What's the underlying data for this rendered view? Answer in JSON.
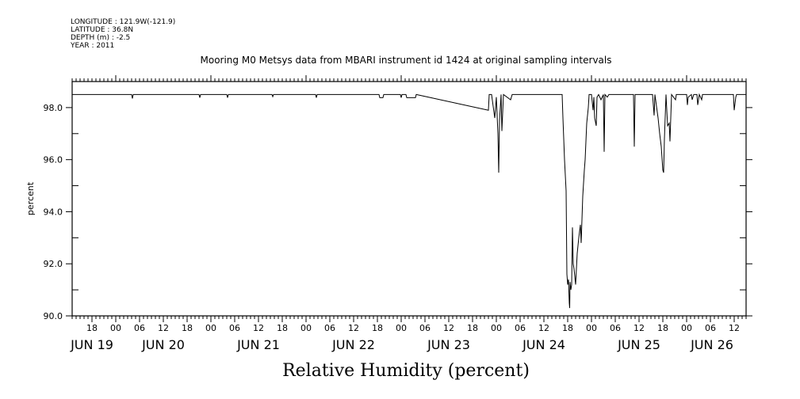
{
  "header": {
    "longitude": "LONGITUDE : 121.9W(-121.9)",
    "latitude": "LATITUDE : 36.8N",
    "depth": "DEPTH (m) : -2.5",
    "year": "YEAR : 2011"
  },
  "chart_data": {
    "type": "line",
    "title": "Mooring M0 Metsys data from MBARI instrument id 1424 at original sampling intervals",
    "xlabel": "Relative Humidity (percent)",
    "ylabel": "percent",
    "x_units": "hours since JUN 19 00:00",
    "xlim": [
      13,
      183
    ],
    "ylim": [
      90,
      99
    ],
    "yticks": [
      90,
      92,
      94,
      96,
      98
    ],
    "ytick_labels": [
      "90.0",
      "92.0",
      "94.0",
      "96.0",
      "98.0"
    ],
    "xtick_hours": [
      18,
      24,
      30,
      36,
      42,
      48,
      54,
      60,
      66,
      72,
      78,
      84,
      90,
      96,
      102,
      108,
      114,
      120,
      126,
      132,
      138,
      144,
      150,
      156,
      162,
      168,
      174,
      180
    ],
    "xtick_labels": [
      "18",
      "00",
      "06",
      "12",
      "18",
      "00",
      "06",
      "12",
      "18",
      "00",
      "06",
      "12",
      "18",
      "00",
      "06",
      "12",
      "18",
      "00",
      "06",
      "12",
      "18",
      "00",
      "06",
      "12",
      "18",
      "00",
      "06",
      "12"
    ],
    "date_labels": [
      {
        "label": "JUN 19",
        "hour": 18
      },
      {
        "label": "JUN 20",
        "hour": 36
      },
      {
        "label": "JUN 21",
        "hour": 60
      },
      {
        "label": "JUN 22",
        "hour": 84
      },
      {
        "label": "JUN 23",
        "hour": 108
      },
      {
        "label": "JUN 24",
        "hour": 132
      },
      {
        "label": "JUN 25",
        "hour": 156
      },
      {
        "label": "JUN 26",
        "hour": 174.4
      }
    ],
    "grid": false,
    "series": [
      {
        "name": "Relative Humidity",
        "x": [
          13,
          28,
          28.2,
          28.4,
          45,
          45.2,
          45.4,
          52,
          52.2,
          52.4,
          63.4,
          63.6,
          63.8,
          74.4,
          74.6,
          74.8,
          90.4,
          90.6,
          91.4,
          91.6,
          91.8,
          95.8,
          96,
          96.2,
          97.2,
          97.4,
          99.6,
          99.8,
          118,
          118.2,
          118.8,
          119.6,
          120,
          120.4,
          120.6,
          120.8,
          121.2,
          121.4,
          121.8,
          123.6,
          124,
          136.6,
          136.8,
          137.2,
          137.6,
          137.8,
          138,
          138.2,
          138.4,
          138.5,
          138.6,
          138.8,
          139,
          139.2,
          139.4,
          139.6,
          140,
          140.4,
          140.8,
          141.2,
          141.4,
          141.6,
          141.8,
          142.2,
          142.4,
          142.8,
          143.2,
          143.4,
          144,
          144.4,
          144.6,
          144.8,
          145.2,
          145.4,
          145.8,
          146.4,
          147,
          147.2,
          147.4,
          148,
          148.4,
          154.6,
          154.8,
          155,
          159.4,
          159.8,
          160,
          160.8,
          161.2,
          161.6,
          162,
          162.2,
          162.4,
          162.8,
          163.2,
          163.6,
          163.8,
          164.2,
          165.2,
          165.4,
          168,
          168.2,
          168.4,
          169.2,
          169.4,
          169.8,
          170.6,
          170.8,
          171.2,
          171.8,
          172,
          172.4,
          179.8,
          180,
          180.4,
          180.6,
          183
        ],
        "y": [
          98.5,
          98.5,
          98.35,
          98.5,
          98.5,
          98.38,
          98.5,
          98.5,
          98.38,
          98.5,
          98.5,
          98.42,
          98.5,
          98.5,
          98.38,
          98.5,
          98.5,
          98.38,
          98.38,
          98.5,
          98.5,
          98.5,
          98.38,
          98.5,
          98.5,
          98.38,
          98.38,
          98.5,
          97.9,
          98.5,
          98.5,
          97.6,
          98.4,
          97.0,
          95.5,
          97.5,
          98.5,
          97.1,
          98.5,
          98.3,
          98.5,
          98.5,
          97.6,
          96.0,
          94.8,
          91.6,
          91.2,
          91.4,
          90.5,
          90.3,
          91.3,
          91.0,
          91.2,
          93.4,
          92.0,
          91.8,
          91.2,
          92.4,
          93.0,
          93.5,
          92.8,
          93.7,
          94.6,
          95.6,
          96.0,
          97.4,
          98.0,
          98.5,
          98.5,
          97.9,
          98.4,
          97.6,
          97.3,
          98.4,
          98.5,
          98.3,
          98.5,
          96.3,
          98.5,
          98.4,
          98.5,
          98.5,
          96.5,
          98.5,
          98.5,
          97.7,
          98.5,
          97.6,
          97.0,
          96.5,
          95.6,
          95.5,
          96.8,
          98.5,
          97.3,
          97.4,
          96.7,
          98.5,
          98.3,
          98.5,
          98.5,
          98.1,
          98.4,
          98.5,
          98.3,
          98.5,
          98.5,
          98.1,
          98.5,
          98.3,
          98.5,
          98.5,
          98.5,
          97.9,
          98.4,
          98.5,
          98.5
        ]
      }
    ]
  }
}
